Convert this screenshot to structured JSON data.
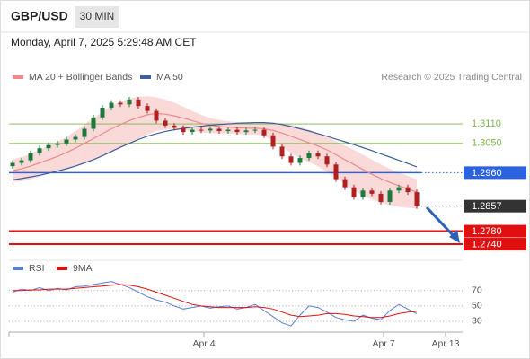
{
  "chart_data": {
    "type": "candlestick",
    "symbol": "GBP/USD",
    "interval": "30 MIN",
    "timestamp": "Monday, April 7, 2025 5:29:48 AM CET",
    "source": "Research © 2025 Trading Central",
    "xlim": [
      -0.4,
      50.1
    ],
    "xticks": [
      {
        "value": 21.3,
        "label": "Apr 4"
      },
      {
        "value": 41.3,
        "label": "Apr 7"
      },
      {
        "value": 48.2,
        "label": "Apr 13"
      }
    ],
    "ylim": [
      1.2718,
      1.3298
    ],
    "candles": {
      "up_color": "#1e7a3c",
      "down_color": "#b02020",
      "open": [
        1.298,
        1.299,
        1.2998,
        1.302,
        1.3035,
        1.3045,
        1.305,
        1.3062,
        1.307,
        1.3095,
        1.313,
        1.316,
        1.3175,
        1.317,
        1.3185,
        1.3165,
        1.315,
        1.312,
        1.3105,
        1.3098,
        1.3085,
        1.3092,
        1.309,
        1.3095,
        1.3088,
        1.3092,
        1.3085,
        1.309,
        1.3092,
        1.3075,
        1.304,
        1.301,
        1.299,
        1.3005,
        1.302,
        1.301,
        1.2985,
        1.294,
        1.2915,
        1.2885,
        1.2905,
        1.2895,
        1.287,
        1.2905,
        1.2915,
        1.29
      ],
      "high": [
        1.2998,
        1.3006,
        1.3028,
        1.3043,
        1.3053,
        1.3058,
        1.307,
        1.3078,
        1.3103,
        1.3138,
        1.3168,
        1.3183,
        1.3183,
        1.3193,
        1.3193,
        1.3173,
        1.3158,
        1.3128,
        1.3113,
        1.3106,
        1.31,
        1.31,
        1.3103,
        1.3103,
        1.31,
        1.31,
        1.3098,
        1.31,
        1.31,
        1.3083,
        1.3048,
        1.3018,
        1.3013,
        1.3028,
        1.3028,
        1.3018,
        1.2993,
        1.2948,
        1.2923,
        1.2913,
        1.2913,
        1.2903,
        1.2913,
        1.2923,
        1.2923,
        1.2908
      ],
      "low": [
        1.2972,
        1.2982,
        1.299,
        1.3012,
        1.3027,
        1.3037,
        1.3042,
        1.3054,
        1.3062,
        1.3087,
        1.3122,
        1.3152,
        1.3162,
        1.3162,
        1.3157,
        1.3142,
        1.3112,
        1.3097,
        1.309,
        1.3077,
        1.3077,
        1.3082,
        1.3082,
        1.308,
        1.308,
        1.3077,
        1.3077,
        1.3082,
        1.3067,
        1.3032,
        1.3002,
        1.2982,
        1.2982,
        1.2997,
        1.3002,
        1.2977,
        1.2932,
        1.2907,
        1.2877,
        1.2877,
        1.2887,
        1.2862,
        1.2862,
        1.2897,
        1.2892,
        1.2849
      ],
      "close": [
        1.299,
        1.2998,
        1.302,
        1.3035,
        1.3045,
        1.305,
        1.3062,
        1.307,
        1.3095,
        1.313,
        1.316,
        1.3175,
        1.317,
        1.3185,
        1.3165,
        1.315,
        1.312,
        1.3105,
        1.3098,
        1.3085,
        1.3092,
        1.309,
        1.3095,
        1.3088,
        1.3092,
        1.3085,
        1.309,
        1.3092,
        1.3075,
        1.304,
        1.301,
        1.299,
        1.3005,
        1.302,
        1.301,
        1.2985,
        1.294,
        1.2915,
        1.2885,
        1.2905,
        1.2895,
        1.287,
        1.2905,
        1.2915,
        1.29,
        1.2857
      ]
    },
    "series": [
      {
        "name": "MA 20 + Bollinger Bands",
        "color": "#f08a8a",
        "band_color": "#f9cfcf",
        "values": [
          1.2966,
          1.2972,
          1.298,
          1.299,
          1.3,
          1.301,
          1.3022,
          1.3035,
          1.305,
          1.3065,
          1.308,
          1.3095,
          1.3108,
          1.312,
          1.313,
          1.3138,
          1.3142,
          1.314,
          1.3135,
          1.3128,
          1.312,
          1.3112,
          1.3106,
          1.3102,
          1.31,
          1.3098,
          1.3097,
          1.3097,
          1.3095,
          1.309,
          1.3082,
          1.3072,
          1.3062,
          1.3052,
          1.3042,
          1.303,
          1.3015,
          1.3,
          1.2985,
          1.297,
          1.2955,
          1.2942,
          1.293,
          1.292,
          1.291,
          1.29
        ],
        "upper": [
          1.3001,
          1.3008,
          1.3018,
          1.303,
          1.3042,
          1.3055,
          1.307,
          1.3088,
          1.3108,
          1.3128,
          1.3148,
          1.3165,
          1.3178,
          1.3188,
          1.3193,
          1.3195,
          1.3192,
          1.3185,
          1.3175,
          1.3163,
          1.315,
          1.3138,
          1.3128,
          1.3122,
          1.3118,
          1.3116,
          1.3115,
          1.3115,
          1.3115,
          1.3115,
          1.3112,
          1.3108,
          1.31,
          1.3092,
          1.3082,
          1.307,
          1.3057,
          1.3043,
          1.303,
          1.3015,
          1.3,
          1.2985,
          1.2972,
          1.296,
          1.295,
          1.294
        ],
        "lower": [
          1.2931,
          1.2934,
          1.294,
          1.2948,
          1.2956,
          1.2963,
          1.2972,
          1.298,
          1.299,
          1.3,
          1.301,
          1.3022,
          1.3035,
          1.305,
          1.3065,
          1.3078,
          1.3088,
          1.3092,
          1.3094,
          1.3092,
          1.3088,
          1.3084,
          1.3082,
          1.308,
          1.308,
          1.3079,
          1.3078,
          1.3078,
          1.3073,
          1.306,
          1.304,
          1.302,
          1.3005,
          1.2992,
          1.298,
          1.2962,
          1.2945,
          1.2925,
          1.2905,
          1.289,
          1.2878,
          1.2868,
          1.286,
          1.2855,
          1.2852,
          1.285
        ]
      },
      {
        "name": "MA 50",
        "color": "#3f5f9a",
        "values": [
          1.2938,
          1.2942,
          1.2947,
          1.2952,
          1.2958,
          1.2965,
          1.2972,
          1.298,
          1.299,
          1.3,
          1.3012,
          1.3025,
          1.3038,
          1.305,
          1.3062,
          1.3072,
          1.308,
          1.3087,
          1.3092,
          1.3096,
          1.31,
          1.3103,
          1.3106,
          1.3108,
          1.311,
          1.3112,
          1.3113,
          1.3114,
          1.3114,
          1.3112,
          1.3108,
          1.3102,
          1.3095,
          1.3088,
          1.308,
          1.3072,
          1.3063,
          1.3055,
          1.3046,
          1.3037,
          1.3028,
          1.3018,
          1.3008,
          1.2998,
          1.2988,
          1.2978
        ]
      }
    ],
    "levels": [
      {
        "value": 1.311,
        "label": "1.3110",
        "color": "#7ab648",
        "style": "text",
        "line": "solid"
      },
      {
        "value": 1.305,
        "label": "1.3050",
        "color": "#7ab648",
        "style": "text",
        "line": "solid"
      },
      {
        "value": 1.296,
        "label": "1.2960",
        "color": "#2a62e0",
        "style": "box",
        "line": "solid-then-dotted"
      },
      {
        "value": 1.2857,
        "label": "1.2857",
        "color": "#333333",
        "style": "box",
        "line": "dotted"
      },
      {
        "value": 1.278,
        "label": "1.2780",
        "color": "#e01010",
        "style": "box",
        "line": "solid"
      },
      {
        "value": 1.274,
        "label": "1.2740",
        "color": "#e01010",
        "style": "box",
        "line": "solid"
      }
    ],
    "rsi": {
      "ylim": [
        20,
        85
      ],
      "yticks": [
        70,
        50,
        30
      ],
      "series": [
        {
          "name": "RSI",
          "color": "#5b7fd6",
          "values": [
            68,
            72,
            70,
            74,
            70,
            73,
            71,
            75,
            76,
            78,
            80,
            82,
            78,
            74,
            68,
            62,
            58,
            55,
            50,
            46,
            48,
            50,
            47,
            49,
            50,
            46,
            48,
            52,
            44,
            36,
            28,
            24,
            38,
            50,
            48,
            42,
            35,
            32,
            30,
            38,
            34,
            32,
            44,
            52,
            46,
            40
          ]
        },
        {
          "name": "9MA",
          "color": "#e01010",
          "values": [
            70,
            70,
            71,
            71,
            72,
            72,
            72,
            73,
            74,
            75,
            76,
            77,
            78,
            77,
            75,
            72,
            68,
            64,
            60,
            56,
            52,
            50,
            49,
            48,
            48,
            48,
            48,
            49,
            48,
            46,
            42,
            38,
            36,
            37,
            38,
            40,
            40,
            39,
            37,
            36,
            35,
            35,
            37,
            40,
            42,
            43
          ]
        }
      ]
    }
  }
}
